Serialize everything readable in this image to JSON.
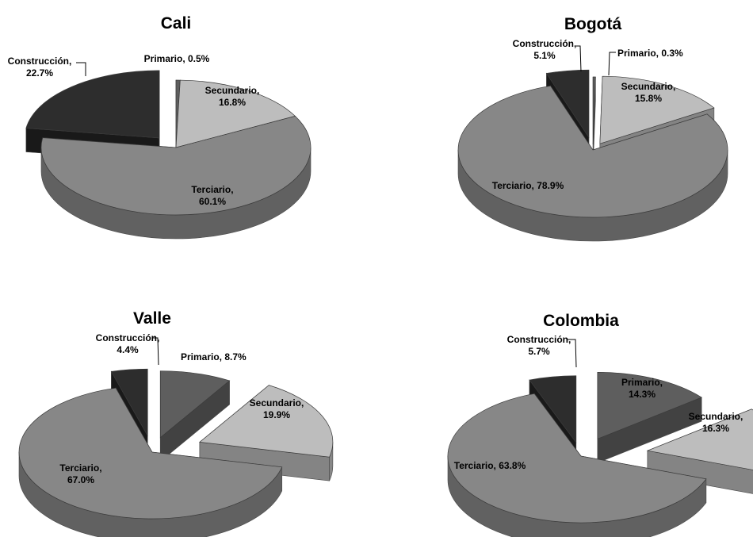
{
  "colors": {
    "Primario": "#5e5e5e",
    "Secundario": "#bdbdbd",
    "Terciario": "#878787",
    "Construcción": "#2d2d2d"
  },
  "chart_data": [
    {
      "type": "pie",
      "title": "Cali",
      "slices": [
        {
          "category": "Primario",
          "value": 0.5,
          "label": [
            "Primario, 0.5%"
          ]
        },
        {
          "category": "Secundario",
          "value": 16.8,
          "label": [
            "Secundario,",
            "16.8%"
          ]
        },
        {
          "category": "Terciario",
          "value": 60.1,
          "label": [
            "Terciario,",
            "60.1%"
          ]
        },
        {
          "category": "Construcción",
          "value": 22.7,
          "label": [
            "Construcción,",
            "22.7%"
          ]
        }
      ]
    },
    {
      "type": "pie",
      "title": "Bogotá",
      "slices": [
        {
          "category": "Primario",
          "value": 0.3,
          "label": [
            "Primario, 0.3%"
          ]
        },
        {
          "category": "Secundario",
          "value": 15.8,
          "label": [
            "Secundario,",
            "15.8%"
          ]
        },
        {
          "category": "Terciario",
          "value": 78.9,
          "label": [
            "Terciario, 78.9%"
          ]
        },
        {
          "category": "Construcción",
          "value": 5.1,
          "label": [
            "Construcción,",
            "5.1%"
          ]
        }
      ]
    },
    {
      "type": "pie",
      "title": "Valle",
      "slices": [
        {
          "category": "Primario",
          "value": 8.7,
          "label": [
            "Primario, 8.7%"
          ]
        },
        {
          "category": "Secundario",
          "value": 19.9,
          "label": [
            "Secundario,",
            "19.9%"
          ]
        },
        {
          "category": "Terciario",
          "value": 67.0,
          "label": [
            "Terciario,",
            "67.0%"
          ]
        },
        {
          "category": "Construcción",
          "value": 4.4,
          "label": [
            "Construcción,",
            "4.4%"
          ]
        }
      ]
    },
    {
      "type": "pie",
      "title": "Colombia",
      "slices": [
        {
          "category": "Primario",
          "value": 14.3,
          "label": [
            "Primario,",
            "14.3%"
          ]
        },
        {
          "category": "Secundario",
          "value": 16.3,
          "label": [
            "Secundario,",
            "16.3%"
          ]
        },
        {
          "category": "Terciario",
          "value": 63.8,
          "label": [
            "Terciario, 63.8%"
          ]
        },
        {
          "category": "Construcción",
          "value": 5.7,
          "label": [
            "Construcción,",
            "5.7%"
          ]
        }
      ]
    }
  ]
}
